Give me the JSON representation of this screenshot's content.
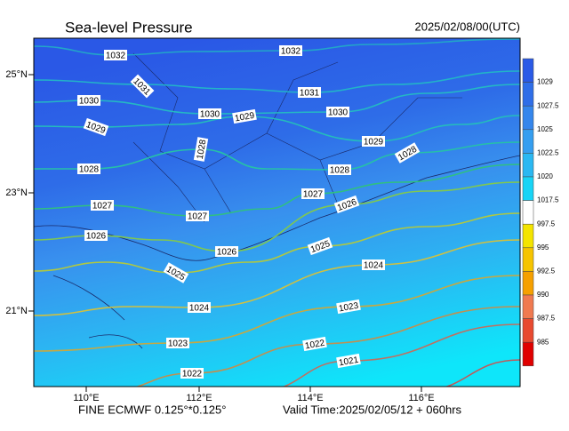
{
  "header": {
    "title": "Sea-level Pressure",
    "time": "2025/02/08/00(UTC)"
  },
  "axes": {
    "lat_labels": [
      "25°N",
      "23°N",
      "21°N"
    ],
    "lon_labels": [
      "110°E",
      "112°E",
      "114°E",
      "116°E"
    ]
  },
  "footer": {
    "model": "FINE ECMWF 0.125°*0.125°",
    "valid": "Valid Time:2025/02/05/12 + 060hrs"
  },
  "colorbar": {
    "labels": [
      1029,
      1027.5,
      1025,
      1022.5,
      1020,
      1017.5,
      997.5,
      995,
      992.5,
      990,
      987.5,
      985
    ],
    "colors": [
      "#2a5ae6",
      "#2f6ee8",
      "#3586ec",
      "#359ef0",
      "#2ab8f2",
      "#18d4f6",
      "#ffffff",
      "#f4e400",
      "#f6c400",
      "#f6a000",
      "#f07a50",
      "#e84a30",
      "#e00000"
    ]
  },
  "contour_labels": [
    1032,
    1032,
    1031,
    1031,
    1030,
    1030,
    1029,
    1030,
    1029,
    1028,
    1029,
    1028,
    1028,
    1028,
    1027,
    1027,
    1026,
    1027,
    1026,
    1026,
    1025,
    1025,
    1024,
    1024,
    1023,
    1023,
    1022,
    1022,
    1021
  ]
}
